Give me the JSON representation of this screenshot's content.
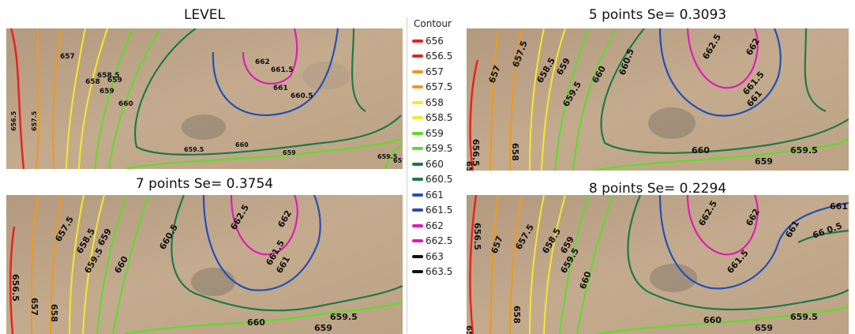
{
  "panels": {
    "level": {
      "title": "LEVEL"
    },
    "p5": {
      "title": "5 points Se= 0.3093"
    },
    "p7": {
      "title": "7 points Se= 0.3754"
    },
    "p8": {
      "title": "8 points Se= 0.2294"
    }
  },
  "legend": {
    "title": "Contour",
    "items": [
      {
        "label": "656",
        "color": "#e8231d"
      },
      {
        "label": "656.5",
        "color": "#e8231d"
      },
      {
        "label": "657",
        "color": "#f09a16"
      },
      {
        "label": "657.5",
        "color": "#f09a16"
      },
      {
        "label": "658",
        "color": "#f2ea2a"
      },
      {
        "label": "658.5",
        "color": "#f2ea2a"
      },
      {
        "label": "659",
        "color": "#5fdc2a"
      },
      {
        "label": "659.5",
        "color": "#5fdc2a"
      },
      {
        "label": "660",
        "color": "#1d7a45"
      },
      {
        "label": "660.5",
        "color": "#1d7a45"
      },
      {
        "label": "661",
        "color": "#2250b8"
      },
      {
        "label": "661.5",
        "color": "#2250b8"
      },
      {
        "label": "662",
        "color": "#e01cb6"
      },
      {
        "label": "662.5",
        "color": "#e01cb6"
      },
      {
        "label": "663",
        "color": "#111111"
      },
      {
        "label": "663.5",
        "color": "#111111"
      }
    ]
  },
  "contour_labels": {
    "level": [
      "657",
      "658",
      "658.5",
      "659",
      "659",
      "660",
      "662",
      "661.5",
      "661",
      "660.5",
      "656.5",
      "657.5",
      "659.5",
      "660",
      "659",
      "659.5",
      "659"
    ],
    "p5": [
      "662.5",
      "662",
      "661.5",
      "661",
      "660.5",
      "660",
      "659.5",
      "659",
      "658.5",
      "657.5",
      "657",
      "656.5",
      "658",
      "660",
      "659.5",
      "659",
      "656"
    ],
    "p7": [
      "662.5",
      "662",
      "661.5",
      "661",
      "660.5",
      "659",
      "658.5",
      "659.5",
      "657.5",
      "660",
      "656.5",
      "657",
      "658",
      "660",
      "659.5",
      "659"
    ],
    "p8": [
      "662.5",
      "662",
      "661",
      "66 0.5",
      "661.5",
      "661",
      "659",
      "659.5",
      "658.5",
      "657.5",
      "657",
      "656.5",
      "660",
      "658",
      "659.5",
      "659",
      "660",
      "656"
    ]
  }
}
